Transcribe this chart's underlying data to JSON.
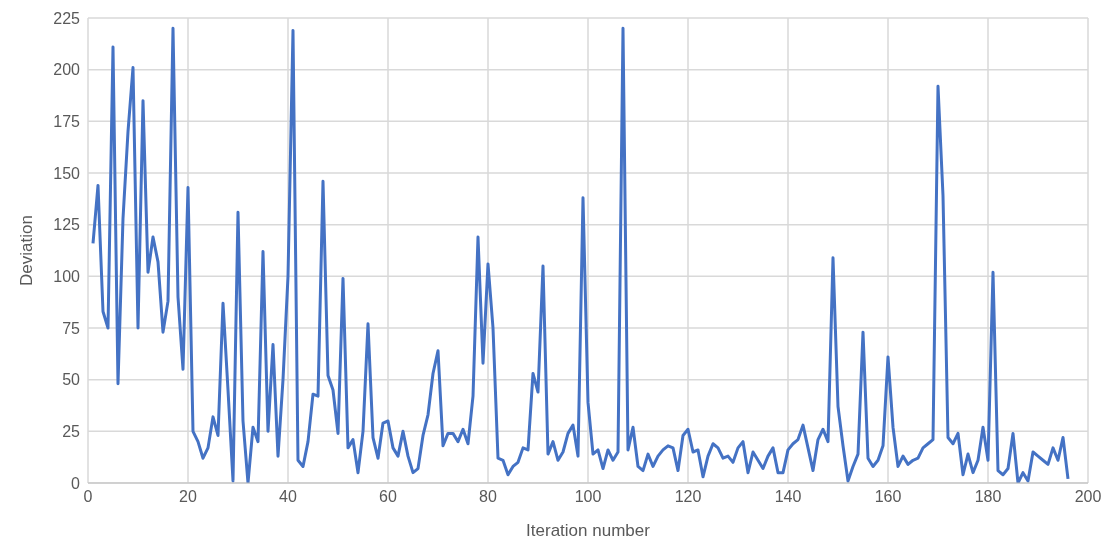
{
  "chart_data": {
    "type": "line",
    "xlabel": "Iteration number",
    "ylabel": "Deviation",
    "x": [
      1,
      2,
      3,
      4,
      5,
      6,
      7,
      8,
      9,
      10,
      11,
      12,
      13,
      14,
      15,
      16,
      17,
      18,
      19,
      20,
      21,
      22,
      23,
      24,
      25,
      26,
      27,
      28,
      29,
      30,
      31,
      32,
      33,
      34,
      35,
      36,
      37,
      38,
      39,
      40,
      41,
      42,
      43,
      44,
      45,
      46,
      47,
      48,
      49,
      50,
      51,
      52,
      53,
      54,
      55,
      56,
      57,
      58,
      59,
      60,
      61,
      62,
      63,
      64,
      65,
      66,
      67,
      68,
      69,
      70,
      71,
      72,
      73,
      74,
      75,
      76,
      77,
      78,
      79,
      80,
      81,
      82,
      83,
      84,
      85,
      86,
      87,
      88,
      89,
      90,
      91,
      92,
      93,
      94,
      95,
      96,
      97,
      98,
      99,
      100,
      101,
      102,
      103,
      104,
      105,
      106,
      107,
      108,
      109,
      110,
      111,
      112,
      113,
      114,
      115,
      116,
      117,
      118,
      119,
      120,
      121,
      122,
      123,
      124,
      125,
      126,
      127,
      128,
      129,
      130,
      131,
      132,
      133,
      134,
      135,
      136,
      137,
      138,
      139,
      140,
      141,
      142,
      143,
      144,
      145,
      146,
      147,
      148,
      149,
      150,
      151,
      152,
      153,
      154,
      155,
      156,
      157,
      158,
      159,
      160,
      161,
      162,
      163,
      164,
      165,
      166,
      167,
      168,
      169,
      170,
      171,
      172,
      173,
      174,
      175,
      176,
      177,
      178,
      179,
      180,
      181,
      182,
      183,
      184,
      185,
      186,
      187,
      188,
      189,
      190,
      191,
      192,
      193,
      194,
      195,
      196
    ],
    "series": [
      {
        "color": "#4472c4",
        "values": [
          116,
          144,
          83,
          75,
          211,
          48,
          128,
          170,
          201,
          75,
          185,
          102,
          119,
          107,
          73,
          88,
          220,
          90,
          55,
          143,
          25,
          20,
          12,
          17,
          32,
          23,
          87,
          45,
          1,
          131,
          30,
          0,
          27,
          20,
          112,
          25,
          67,
          13,
          50,
          100,
          219,
          11,
          8,
          20,
          43,
          42,
          146,
          52,
          45,
          24,
          99,
          17,
          21,
          5,
          25,
          77,
          22,
          12,
          29,
          30,
          17,
          13,
          25,
          13,
          5,
          7,
          23,
          33,
          53,
          64,
          18,
          24,
          24,
          20,
          26,
          19,
          42,
          119,
          58,
          106,
          75,
          12,
          11,
          4,
          8,
          10,
          17,
          16,
          53,
          44,
          105,
          14,
          20,
          11,
          15,
          24,
          28,
          13,
          138,
          39,
          14,
          16,
          7,
          16,
          11,
          15,
          220,
          16,
          27,
          8,
          6,
          14,
          8,
          13,
          16,
          18,
          17,
          6,
          23,
          26,
          15,
          16,
          3,
          13,
          19,
          17,
          12,
          13,
          10,
          17,
          20,
          5,
          15,
          11,
          7,
          13,
          17,
          5,
          5,
          16,
          19,
          21,
          28,
          17,
          6,
          21,
          26,
          20,
          109,
          37,
          18,
          1,
          8,
          14,
          73,
          12,
          8,
          11,
          18,
          61,
          27,
          8,
          13,
          9,
          11,
          12,
          17,
          19,
          21,
          192,
          139,
          22,
          19,
          24,
          4,
          14,
          5,
          11,
          27,
          11,
          102,
          6,
          4,
          7,
          24,
          0,
          5,
          1,
          15,
          13,
          11,
          9,
          17,
          11,
          22,
          2
        ]
      }
    ],
    "xlim": [
      0,
      200
    ],
    "xticks": [
      0,
      20,
      40,
      60,
      80,
      100,
      120,
      140,
      160,
      180,
      200
    ],
    "ylim": [
      0,
      225
    ],
    "yticks": [
      0,
      25,
      50,
      75,
      100,
      125,
      150,
      175,
      200,
      225
    ],
    "grid": true,
    "legend": false,
    "marker": "none",
    "line_style": "solid"
  }
}
